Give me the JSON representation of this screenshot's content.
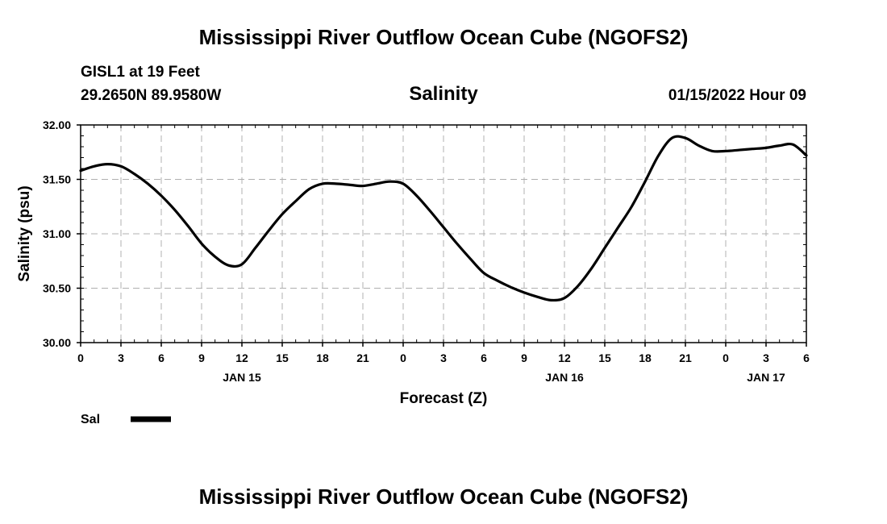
{
  "header": {
    "main_title": "Mississippi River Outflow Ocean Cube (NGOFS2)",
    "station": "GISL1 at 19 Feet",
    "coords": "29.2650N  89.9580W",
    "timestamp": "01/15/2022 Hour 09"
  },
  "footer": {
    "main_title": "Mississippi River Outflow Ocean Cube (NGOFS2)"
  },
  "chart_data": {
    "type": "line",
    "title": "Salinity",
    "xlabel": "Forecast (Z)",
    "ylabel": "Salinity (psu)",
    "ylim": [
      30.0,
      32.0
    ],
    "xlim": [
      0,
      54
    ],
    "grid": true,
    "yticks": [
      "30.00",
      "30.50",
      "31.00",
      "31.50",
      "32.00"
    ],
    "ytick_values": [
      30.0,
      30.5,
      31.0,
      31.5,
      32.0
    ],
    "xtick_labels": [
      "0",
      "3",
      "6",
      "9",
      "12",
      "15",
      "18",
      "21",
      "0",
      "3",
      "6",
      "9",
      "12",
      "15",
      "18",
      "21",
      "0",
      "3",
      "6"
    ],
    "date_labels": [
      {
        "text": "JAN 15",
        "hour": 12
      },
      {
        "text": "JAN 16",
        "hour": 36
      },
      {
        "text": "JAN 17",
        "hour": 51
      }
    ],
    "legend": [
      {
        "name": "Sal",
        "color": "#000000",
        "position": "bottom-left"
      }
    ],
    "series": [
      {
        "name": "Sal",
        "color": "#000000",
        "x": [
          0,
          1,
          2,
          3,
          4,
          5,
          6,
          7,
          8,
          9,
          10,
          11,
          12,
          13,
          14,
          15,
          16,
          17,
          18,
          19,
          20,
          21,
          22,
          23,
          24,
          25,
          26,
          27,
          28,
          29,
          30,
          31,
          32,
          33,
          34,
          35,
          36,
          37,
          38,
          39,
          40,
          41,
          42,
          43,
          44,
          45,
          46,
          47,
          48,
          49,
          50,
          51,
          52,
          53,
          54
        ],
        "y": [
          31.58,
          31.62,
          31.64,
          31.62,
          31.55,
          31.46,
          31.35,
          31.22,
          31.07,
          30.91,
          30.79,
          30.71,
          30.72,
          30.87,
          31.03,
          31.18,
          31.3,
          31.41,
          31.46,
          31.46,
          31.45,
          31.44,
          31.46,
          31.48,
          31.46,
          31.35,
          31.21,
          31.06,
          30.91,
          30.77,
          30.64,
          30.57,
          30.51,
          30.46,
          30.42,
          30.39,
          30.41,
          30.52,
          30.68,
          30.87,
          31.06,
          31.25,
          31.48,
          31.72,
          31.88,
          31.88,
          31.81,
          31.76,
          31.76,
          31.77,
          31.78,
          31.79,
          31.81,
          31.82,
          31.72
        ]
      }
    ]
  }
}
